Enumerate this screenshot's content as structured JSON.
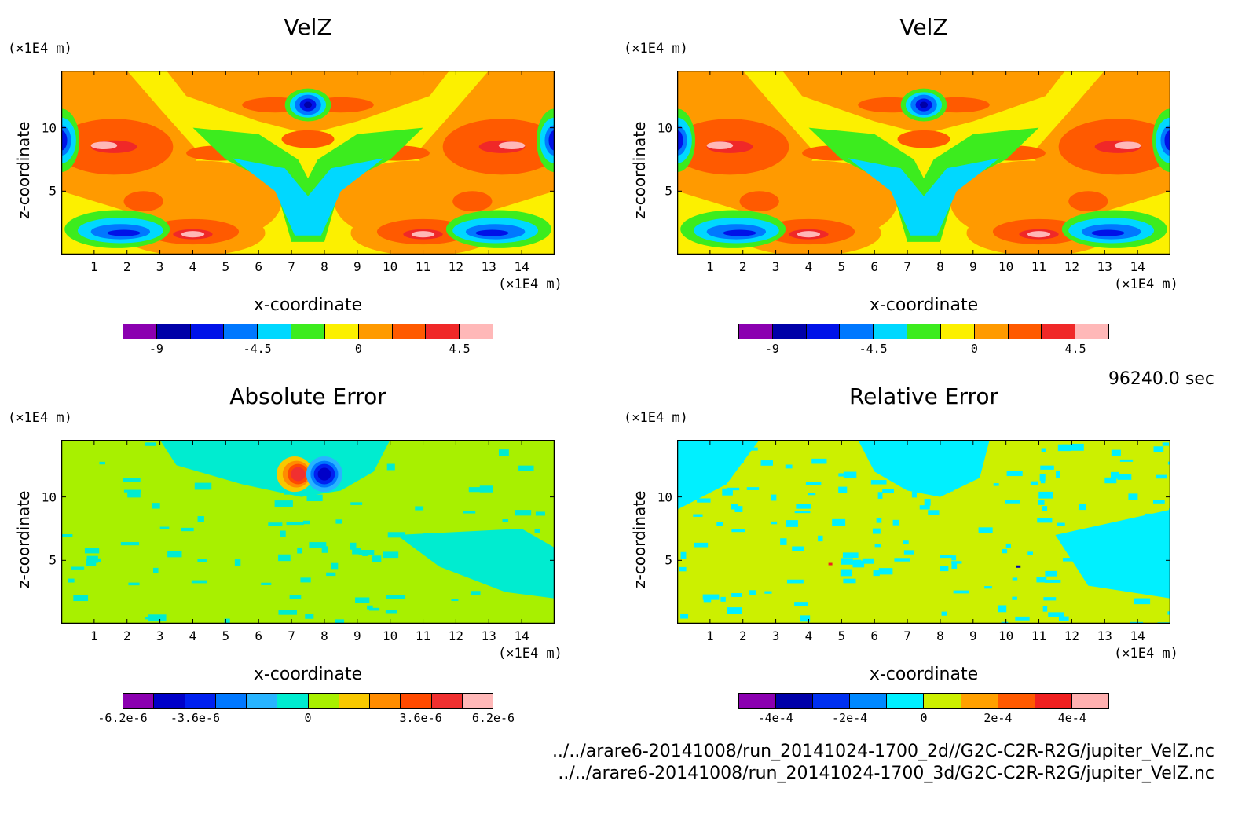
{
  "chart_data": [
    {
      "type": "heatmap",
      "title": "VelZ",
      "xlabel": "x-coordinate",
      "ylabel": "z-coordinate",
      "x_unit": "(×1E4 m)",
      "y_unit": "(×1E4 m)",
      "xlim": [
        0,
        15
      ],
      "ylim": [
        0,
        14.5
      ],
      "x_ticks": [
        1,
        2,
        3,
        4,
        5,
        6,
        7,
        8,
        9,
        10,
        11,
        12,
        13,
        14
      ],
      "y_ticks": [
        5,
        10
      ],
      "colorbar_ticks": [
        "-9",
        "-4.5",
        "0",
        "4.5"
      ],
      "colorbar_colors": [
        "#8b00b0",
        "#0000a8",
        "#0012e8",
        "#0078ff",
        "#00d8ff",
        "#3cec1e",
        "#fcf000",
        "#ff9a00",
        "#ff5a00",
        "#f02828",
        "#ffb8b8"
      ],
      "pattern": "velz"
    },
    {
      "type": "heatmap",
      "title": "VelZ",
      "xlabel": "x-coordinate",
      "ylabel": "z-coordinate",
      "x_unit": "(×1E4 m)",
      "y_unit": "(×1E4 m)",
      "xlim": [
        0,
        15
      ],
      "ylim": [
        0,
        14.5
      ],
      "x_ticks": [
        1,
        2,
        3,
        4,
        5,
        6,
        7,
        8,
        9,
        10,
        11,
        12,
        13,
        14
      ],
      "y_ticks": [
        5,
        10
      ],
      "colorbar_ticks": [
        "-9",
        "-4.5",
        "0",
        "4.5"
      ],
      "colorbar_colors": [
        "#8b00b0",
        "#0000a8",
        "#0012e8",
        "#0078ff",
        "#00d8ff",
        "#3cec1e",
        "#fcf000",
        "#ff9a00",
        "#ff5a00",
        "#f02828",
        "#ffb8b8"
      ],
      "pattern": "velz"
    },
    {
      "type": "heatmap",
      "title": "Absolute Error",
      "xlabel": "x-coordinate",
      "ylabel": "z-coordinate",
      "x_unit": "(×1E4 m)",
      "y_unit": "(×1E4 m)",
      "xlim": [
        0,
        15
      ],
      "ylim": [
        0,
        14.5
      ],
      "x_ticks": [
        1,
        2,
        3,
        4,
        5,
        6,
        7,
        8,
        9,
        10,
        11,
        12,
        13,
        14
      ],
      "y_ticks": [
        5,
        10
      ],
      "colorbar_ticks": [
        "-6.2e-6",
        "-3.6e-6",
        "0",
        "3.6e-6",
        "6.2e-6"
      ],
      "colorbar_colors": [
        "#8b00b0",
        "#0000c8",
        "#0020f0",
        "#0078ff",
        "#28b4ff",
        "#00ecd0",
        "#a8f000",
        "#f8c800",
        "#ff8c00",
        "#ff4a00",
        "#f03030",
        "#ffb8b8"
      ],
      "pattern": "abs"
    },
    {
      "type": "heatmap",
      "title": "Relative Error",
      "xlabel": "x-coordinate",
      "ylabel": "z-coordinate",
      "x_unit": "(×1E4 m)",
      "y_unit": "(×1E4 m)",
      "xlim": [
        0,
        15
      ],
      "ylim": [
        0,
        14.5
      ],
      "x_ticks": [
        1,
        2,
        3,
        4,
        5,
        6,
        7,
        8,
        9,
        10,
        11,
        12,
        13,
        14
      ],
      "y_ticks": [
        5,
        10
      ],
      "colorbar_ticks": [
        "-4e-4",
        "-2e-4",
        "0",
        "2e-4",
        "4e-4"
      ],
      "colorbar_colors": [
        "#8b00b0",
        "#0000a8",
        "#0030f0",
        "#0088ff",
        "#00f0ff",
        "#ccf000",
        "#ffa000",
        "#ff5a00",
        "#f02020",
        "#ffb0b0"
      ],
      "pattern": "rel"
    }
  ],
  "time_label": "96240.0 sec",
  "footer": {
    "line1": "../../arare6-20141008/run_20141024-1700_2d//G2C-C2R-R2G/jupiter_VelZ.nc",
    "line2": "../../arare6-20141008/run_20141024-1700_3d/G2C-C2R-R2G/jupiter_VelZ.nc"
  }
}
